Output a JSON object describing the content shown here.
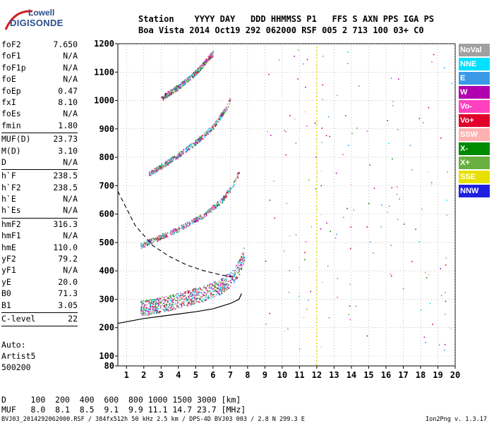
{
  "logo": {
    "line1": "Lowell",
    "line2": "DIGISONDE"
  },
  "header": {
    "line1": "Station    YYYY DAY   DDD HHMMSS P1   FFS S AXN PPS IGA PS",
    "line2": "Boa Vista 2014 Oct19 292 062000 RSF 005 2 713 100 03+ C0"
  },
  "params": [
    {
      "name": "foF2",
      "value": "7.650",
      "sep": false
    },
    {
      "name": "foF1",
      "value": "N/A",
      "sep": false
    },
    {
      "name": "foF1p",
      "value": "N/A",
      "sep": false
    },
    {
      "name": "foE",
      "value": "N/A",
      "sep": false
    },
    {
      "name": "foEp",
      "value": "0.47",
      "sep": false
    },
    {
      "name": "fxI",
      "value": "8.10",
      "sep": false
    },
    {
      "name": "foEs",
      "value": "N/A",
      "sep": false
    },
    {
      "name": "fmin",
      "value": "1.80",
      "sep": true
    },
    {
      "name": "MUF(D)",
      "value": "23.73",
      "sep": false
    },
    {
      "name": "M(D)",
      "value": "3.10",
      "sep": false
    },
    {
      "name": "D",
      "value": "N/A",
      "sep": true
    },
    {
      "name": "h`F",
      "value": "238.5",
      "sep": false
    },
    {
      "name": "h`F2",
      "value": "238.5",
      "sep": false
    },
    {
      "name": "h`E",
      "value": "N/A",
      "sep": false
    },
    {
      "name": "h`Es",
      "value": "N/A",
      "sep": true
    },
    {
      "name": "hmF2",
      "value": "316.3",
      "sep": false
    },
    {
      "name": "hmF1",
      "value": "N/A",
      "sep": false
    },
    {
      "name": "hmE",
      "value": "110.0",
      "sep": false
    },
    {
      "name": "yF2",
      "value": "79.2",
      "sep": false
    },
    {
      "name": "yF1",
      "value": "N/A",
      "sep": false
    },
    {
      "name": "yE",
      "value": "20.0",
      "sep": false
    },
    {
      "name": "B0",
      "value": "71.3",
      "sep": false
    },
    {
      "name": "B1",
      "value": "3.05",
      "sep": true
    },
    {
      "name": "C-level",
      "value": "22",
      "sep": true
    }
  ],
  "auto": [
    "Auto:",
    "Artist5",
    "500200"
  ],
  "bottom": {
    "d_line": "D     100  200  400  600  800 1000 1500 3000 [km]",
    "muf_line": "MUF   8.0  8.1  8.5  9.1  9.9 11.1 14.7 23.7 [MHz]"
  },
  "footer": {
    "left": "BVJ03_2014292062000.RSF / 384fx512h 50 kHz 2.5 km / DPS-4D BVJ03 003 / 2.8 N 299.3 E",
    "right": "Ion2Png v. 1.3.17"
  },
  "legend": [
    {
      "label": "NoVal",
      "color": "#a0a0a0"
    },
    {
      "label": "NNE",
      "color": "#00e0ff"
    },
    {
      "label": "E",
      "color": "#3a9ae8"
    },
    {
      "label": "W",
      "color": "#b000b0"
    },
    {
      "label": "Vo-",
      "color": "#ff40c0"
    },
    {
      "label": "Vo+",
      "color": "#e0002a"
    },
    {
      "label": "SSW",
      "color": "#ffb0b0"
    },
    {
      "label": "X-",
      "color": "#008a00"
    },
    {
      "label": "X+",
      "color": "#6ab040"
    },
    {
      "label": "SSE",
      "color": "#e8e000"
    },
    {
      "label": "NNW",
      "color": "#2020e0"
    }
  ],
  "chart_data": {
    "type": "scatter",
    "title": "",
    "xlabel": "",
    "ylabel": "",
    "xlim": [
      0.5,
      20
    ],
    "ylim": [
      80,
      1200
    ],
    "xticks": [
      1,
      2,
      3,
      4,
      5,
      6,
      7,
      8,
      9,
      10,
      11,
      12,
      13,
      14,
      15,
      16,
      17,
      18,
      19,
      20
    ],
    "yticks": [
      80,
      100,
      200,
      300,
      400,
      500,
      600,
      700,
      800,
      900,
      1000,
      1100,
      1200
    ],
    "grid": "dotted",
    "traces": [
      {
        "name": "1-hop O trace",
        "points": [
          [
            1.8,
            240
          ],
          [
            2.5,
            250
          ],
          [
            3.5,
            262
          ],
          [
            4.5,
            277
          ],
          [
            5.5,
            295
          ],
          [
            6.5,
            320
          ],
          [
            7.2,
            355
          ],
          [
            7.6,
            400
          ],
          [
            7.8,
            440
          ]
        ]
      },
      {
        "name": "2-hop trace",
        "points": [
          [
            1.8,
            480
          ],
          [
            2.5,
            500
          ],
          [
            3.5,
            525
          ],
          [
            4.5,
            555
          ],
          [
            5.5,
            590
          ],
          [
            6.5,
            640
          ],
          [
            7.2,
            700
          ],
          [
            7.5,
            740
          ]
        ]
      },
      {
        "name": "3-hop trace",
        "points": [
          [
            2.2,
            730
          ],
          [
            3,
            760
          ],
          [
            4,
            800
          ],
          [
            5,
            845
          ],
          [
            6,
            900
          ],
          [
            6.8,
            970
          ],
          [
            7,
            1000
          ]
        ]
      },
      {
        "name": "4-hop trace",
        "points": [
          [
            3,
            1000
          ],
          [
            4,
            1040
          ],
          [
            5,
            1090
          ],
          [
            6,
            1160
          ]
        ]
      }
    ],
    "profile_solid": [
      [
        0.5,
        215
      ],
      [
        2,
        232
      ],
      [
        3,
        240
      ],
      [
        4,
        248
      ],
      [
        5,
        256
      ],
      [
        6,
        266
      ],
      [
        7,
        285
      ],
      [
        7.5,
        300
      ],
      [
        7.65,
        320
      ]
    ],
    "profile_dashed": [
      [
        0.5,
        680
      ],
      [
        1.5,
        560
      ],
      [
        2.5,
        490
      ],
      [
        3.5,
        450
      ],
      [
        4.5,
        420
      ],
      [
        5.5,
        400
      ],
      [
        6.5,
        385
      ],
      [
        7.3,
        378
      ]
    ]
  }
}
